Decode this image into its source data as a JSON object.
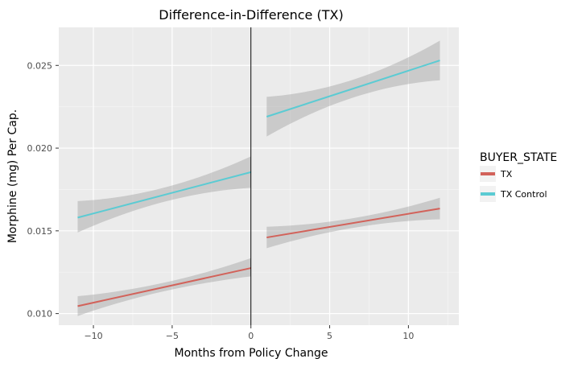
{
  "chart_data": {
    "type": "line",
    "title": "Difference-in-Difference (TX)",
    "xlabel": "Months from Policy Change",
    "ylabel": "Morphine (mg) Per Cap.",
    "xlim": [
      -12.2,
      13.2
    ],
    "ylim": [
      0.0093,
      0.0273
    ],
    "xticks": [
      -10,
      -5,
      0,
      5,
      10
    ],
    "xtick_labels": [
      "−10",
      "−5",
      "0",
      "5",
      "10"
    ],
    "yticks": [
      0.01,
      0.015,
      0.02,
      0.025
    ],
    "ytick_labels": [
      "0.010",
      "0.015",
      "0.020",
      "0.025"
    ],
    "grid": true,
    "vline_x": 0,
    "legend": {
      "title": "BUYER_STATE",
      "position": "right"
    },
    "series": [
      {
        "name": "TX",
        "color": "#d2625a",
        "segments": [
          {
            "x": [
              -11,
              0
            ],
            "y": [
              0.01045,
              0.01275
            ],
            "lower": [
              0.00985,
              0.01225
            ],
            "upper": [
              0.01105,
              0.01335
            ]
          },
          {
            "x": [
              1,
              12
            ],
            "y": [
              0.0146,
              0.01635
            ],
            "lower": [
              0.01395,
              0.0157
            ],
            "upper": [
              0.01525,
              0.017
            ]
          }
        ]
      },
      {
        "name": "TX Control",
        "color": "#5bcbd3",
        "segments": [
          {
            "x": [
              -11,
              0
            ],
            "y": [
              0.0158,
              0.01855
            ],
            "lower": [
              0.0149,
              0.0176
            ],
            "upper": [
              0.0168,
              0.0195
            ]
          },
          {
            "x": [
              1,
              12
            ],
            "y": [
              0.0219,
              0.0253
            ],
            "lower": [
              0.0207,
              0.0241
            ],
            "upper": [
              0.0231,
              0.0265
            ]
          }
        ]
      }
    ]
  }
}
